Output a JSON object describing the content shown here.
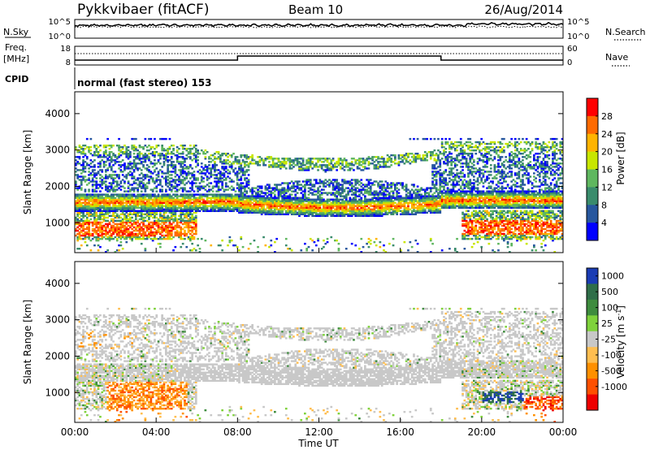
{
  "header": {
    "title": "Pykkvibaer (fitACF)",
    "beam": "Beam 10",
    "date": "26/Aug/2014"
  },
  "top_panels": {
    "nsky_label": "N.Sky",
    "nsearch_label": "N.Search",
    "noise_ticks": [
      "10^5",
      "10^0"
    ],
    "freq_label_1": "Freq.",
    "freq_label_2": "[MHz]",
    "freq_ticks": [
      "18",
      "8"
    ],
    "nave_ticks": [
      "60",
      "0"
    ],
    "nave_label": "Nave",
    "cpid_label": "CPID",
    "cpid_text": "normal (fast stereo) 153",
    "freq_switch_hours": [
      8.0,
      18.0
    ]
  },
  "chart_data": [
    {
      "type": "heatmap",
      "name": "Power",
      "xlabel": "Time UT",
      "ylabel": "Slant Range [km]",
      "xlim": [
        0,
        24
      ],
      "ylim": [
        180,
        4600
      ],
      "yticks": [
        "1000",
        "2000",
        "3000",
        "4000"
      ],
      "colorbar": {
        "label": "Power [dB]",
        "ticks": [
          "28",
          "24",
          "20",
          "16",
          "12",
          "8",
          "4"
        ],
        "colors": [
          "#ff0000",
          "#ff6a00",
          "#ffb400",
          "#c8e600",
          "#5fb75f",
          "#3a8c6c",
          "#27579e",
          "#0000ff"
        ]
      },
      "features": {
        "main_band_range_km": [
          1200,
          1650
        ],
        "upper_band_range_km": [
          2300,
          3200
        ],
        "near_range_echoes_hours": [
          [
            0,
            6
          ],
          [
            19,
            24
          ]
        ]
      }
    },
    {
      "type": "heatmap",
      "name": "Velocity",
      "xlabel": "Time UT",
      "ylabel": "Slant Range [km]",
      "xlim": [
        0,
        24
      ],
      "ylim": [
        180,
        4600
      ],
      "yticks": [
        "1000",
        "2000",
        "3000",
        "4000"
      ],
      "colorbar": {
        "label": "Velocity [m s",
        "label_sup": "-1",
        "label_end": "]",
        "ticks": [
          "1000",
          "500",
          "100",
          "25",
          "-25",
          "-100",
          "-500",
          "-1000"
        ],
        "colors": [
          "#1a3cb4",
          "#2f6e49",
          "#3e8c3e",
          "#7fd23c",
          "#c8c8c8",
          "#ffbe50",
          "#ff9000",
          "#ff5000",
          "#ee0000"
        ]
      },
      "features": {
        "ground_scatter_color": "#c8c8c8",
        "negative_velocity_patch_hours": [
          1.5,
          5.5
        ],
        "positive_velocity_patch_hours": [
          20.0,
          22.0
        ]
      }
    }
  ],
  "xticks": [
    "00:00",
    "04:00",
    "08:00",
    "12:00",
    "16:00",
    "20:00",
    "00:00"
  ],
  "xlabel": "Time UT"
}
